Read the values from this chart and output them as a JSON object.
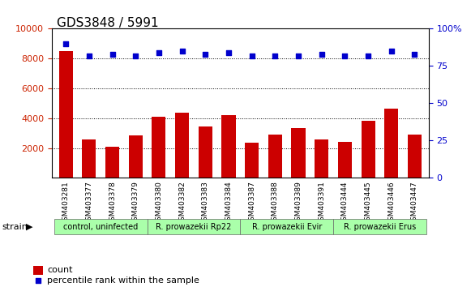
{
  "title": "GDS3848 / 5991",
  "samples": [
    "GSM403281",
    "GSM403377",
    "GSM403378",
    "GSM403379",
    "GSM403380",
    "GSM403382",
    "GSM403383",
    "GSM403384",
    "GSM403387",
    "GSM403388",
    "GSM403389",
    "GSM403391",
    "GSM403444",
    "GSM403445",
    "GSM403446",
    "GSM403447"
  ],
  "counts": [
    8500,
    2600,
    2100,
    2850,
    4100,
    4350,
    3450,
    4200,
    2350,
    2900,
    3350,
    2600,
    2400,
    3850,
    4650,
    2900
  ],
  "percentiles": [
    90,
    82,
    83,
    82,
    84,
    85,
    83,
    84,
    82,
    82,
    82,
    83,
    82,
    82,
    85,
    83
  ],
  "ylim_left": [
    0,
    10000
  ],
  "ylim_right": [
    0,
    100
  ],
  "yticks_left": [
    2000,
    4000,
    6000,
    8000,
    10000
  ],
  "yticks_right": [
    0,
    25,
    50,
    75,
    100
  ],
  "groups": [
    {
      "label": "control, uninfected",
      "start": 0,
      "end": 4,
      "color": "#aaffaa"
    },
    {
      "label": "R. prowazekii Rp22",
      "start": 4,
      "end": 8,
      "color": "#aaffaa"
    },
    {
      "label": "R. prowazekii Evir",
      "start": 8,
      "end": 12,
      "color": "#aaffaa"
    },
    {
      "label": "R. prowazekii Erus",
      "start": 12,
      "end": 16,
      "color": "#aaffaa"
    }
  ],
  "bar_color": "#cc0000",
  "dot_color": "#0000cc",
  "bg_color": "#ffffff",
  "plot_bg": "#ffffff",
  "grid_color": "#000000",
  "strain_label": "strain",
  "legend_count_label": "count",
  "legend_pct_label": "percentile rank within the sample",
  "left_tick_color": "#cc2200",
  "right_tick_color": "#0000cc"
}
